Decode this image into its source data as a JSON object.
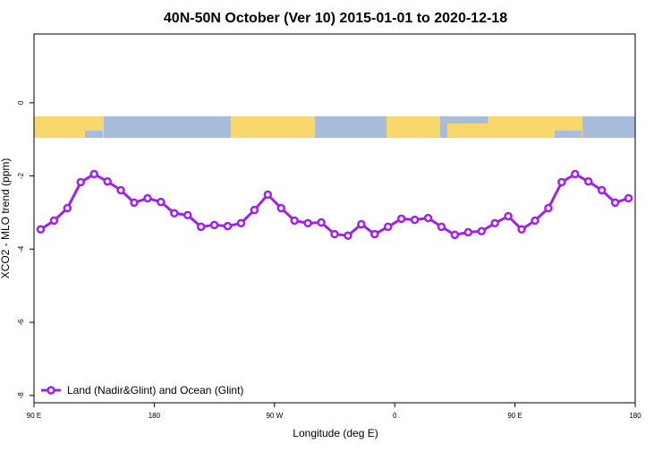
{
  "chart_data": {
    "type": "line",
    "title": "40N-50N October (Ver 10)   2015-01-01 to 2020-12-18",
    "x_label": "Longitude (deg E)",
    "y_label": "XCO2 - MLO trend (ppm)",
    "xlim": [
      90,
      540
    ],
    "xticks": [
      {
        "value": 90,
        "label": "90 E"
      },
      180,
      {
        "value": 270,
        "label": "90 W"
      },
      {
        "value": 360,
        "label": "0"
      },
      {
        "value": 450,
        "label": "90 E"
      },
      {
        "value": 540,
        "label": "180"
      }
    ],
    "ylim": [
      -8.2,
      1.88
    ],
    "yticks": [
      -8,
      -6,
      -4,
      -2,
      0
    ],
    "legend": "bottom-left",
    "x": [
      95,
      105,
      115,
      125,
      135,
      145,
      155,
      165,
      175,
      185,
      195,
      205,
      215,
      225,
      235,
      245,
      255,
      265,
      275,
      285,
      295,
      305,
      315,
      325,
      335,
      345,
      355,
      365,
      375,
      385,
      395,
      405,
      415,
      425,
      435,
      445,
      455,
      465,
      475,
      485,
      495,
      505,
      515,
      525,
      535
    ],
    "series": [
      {
        "name": "Land (Nadir&Glint) and Ocean (Glint)",
        "color": "#a020f0",
        "values": [
          -3.46,
          -3.22,
          -2.88,
          -2.17,
          -1.95,
          -2.15,
          -2.39,
          -2.73,
          -2.61,
          -2.71,
          -3.02,
          -3.07,
          -3.39,
          -3.34,
          -3.37,
          -3.29,
          -2.93,
          -2.51,
          -2.88,
          -3.22,
          -3.29,
          -3.27,
          -3.59,
          -3.63,
          -3.32,
          -3.59,
          -3.39,
          -3.17,
          -3.2,
          -3.15,
          -3.39,
          -3.61,
          -3.54,
          -3.51,
          -3.29,
          -3.1,
          -3.46,
          -3.22,
          -2.88,
          -2.17,
          -1.95,
          -2.15,
          -2.39,
          -2.73,
          -2.61
        ]
      }
    ]
  }
}
